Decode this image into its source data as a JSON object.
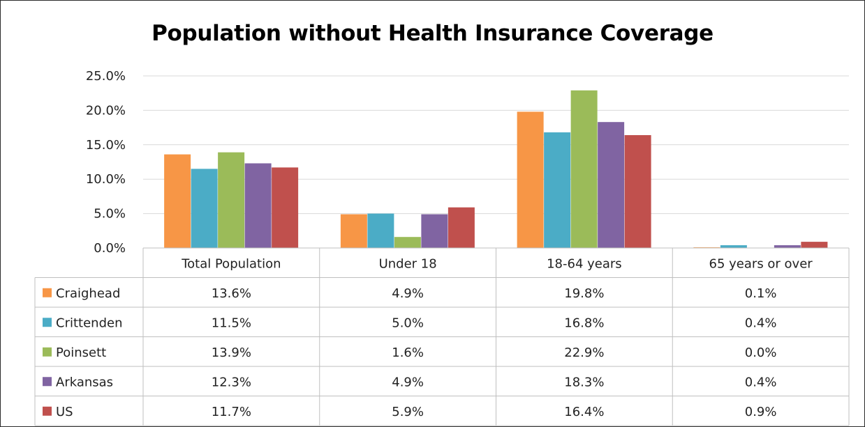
{
  "chart_data": {
    "type": "bar",
    "title": "Population without Health Insurance Coverage",
    "xlabel": "",
    "ylabel": "",
    "categories": [
      "Total Population",
      "Under 18",
      "18-64 years",
      "65 years or over"
    ],
    "ylim": [
      0,
      25
    ],
    "y_ticks": [
      "0.0%",
      "5.0%",
      "10.0%",
      "15.0%",
      "20.0%",
      "25.0%"
    ],
    "grid": true,
    "legend_placement": "data-table",
    "series": [
      {
        "name": "Craighead",
        "color": "#F79646",
        "values": [
          13.6,
          4.9,
          19.8,
          0.1
        ],
        "labels": [
          "13.6%",
          "4.9%",
          "19.8%",
          "0.1%"
        ]
      },
      {
        "name": "Crittenden",
        "color": "#4BACC6",
        "values": [
          11.5,
          5.0,
          16.8,
          0.4
        ],
        "labels": [
          "11.5%",
          "5.0%",
          "16.8%",
          "0.4%"
        ]
      },
      {
        "name": "Poinsett",
        "color": "#9BBB59",
        "values": [
          13.9,
          1.6,
          22.9,
          0.0
        ],
        "labels": [
          "13.9%",
          "1.6%",
          "22.9%",
          "0.0%"
        ]
      },
      {
        "name": "Arkansas",
        "color": "#8064A2",
        "values": [
          12.3,
          4.9,
          18.3,
          0.4
        ],
        "labels": [
          "12.3%",
          "4.9%",
          "18.3%",
          "0.4%"
        ]
      },
      {
        "name": "US",
        "color": "#C0504D",
        "values": [
          11.7,
          5.9,
          16.4,
          0.9
        ],
        "labels": [
          "11.7%",
          "5.9%",
          "16.4%",
          "0.9%"
        ]
      }
    ]
  }
}
